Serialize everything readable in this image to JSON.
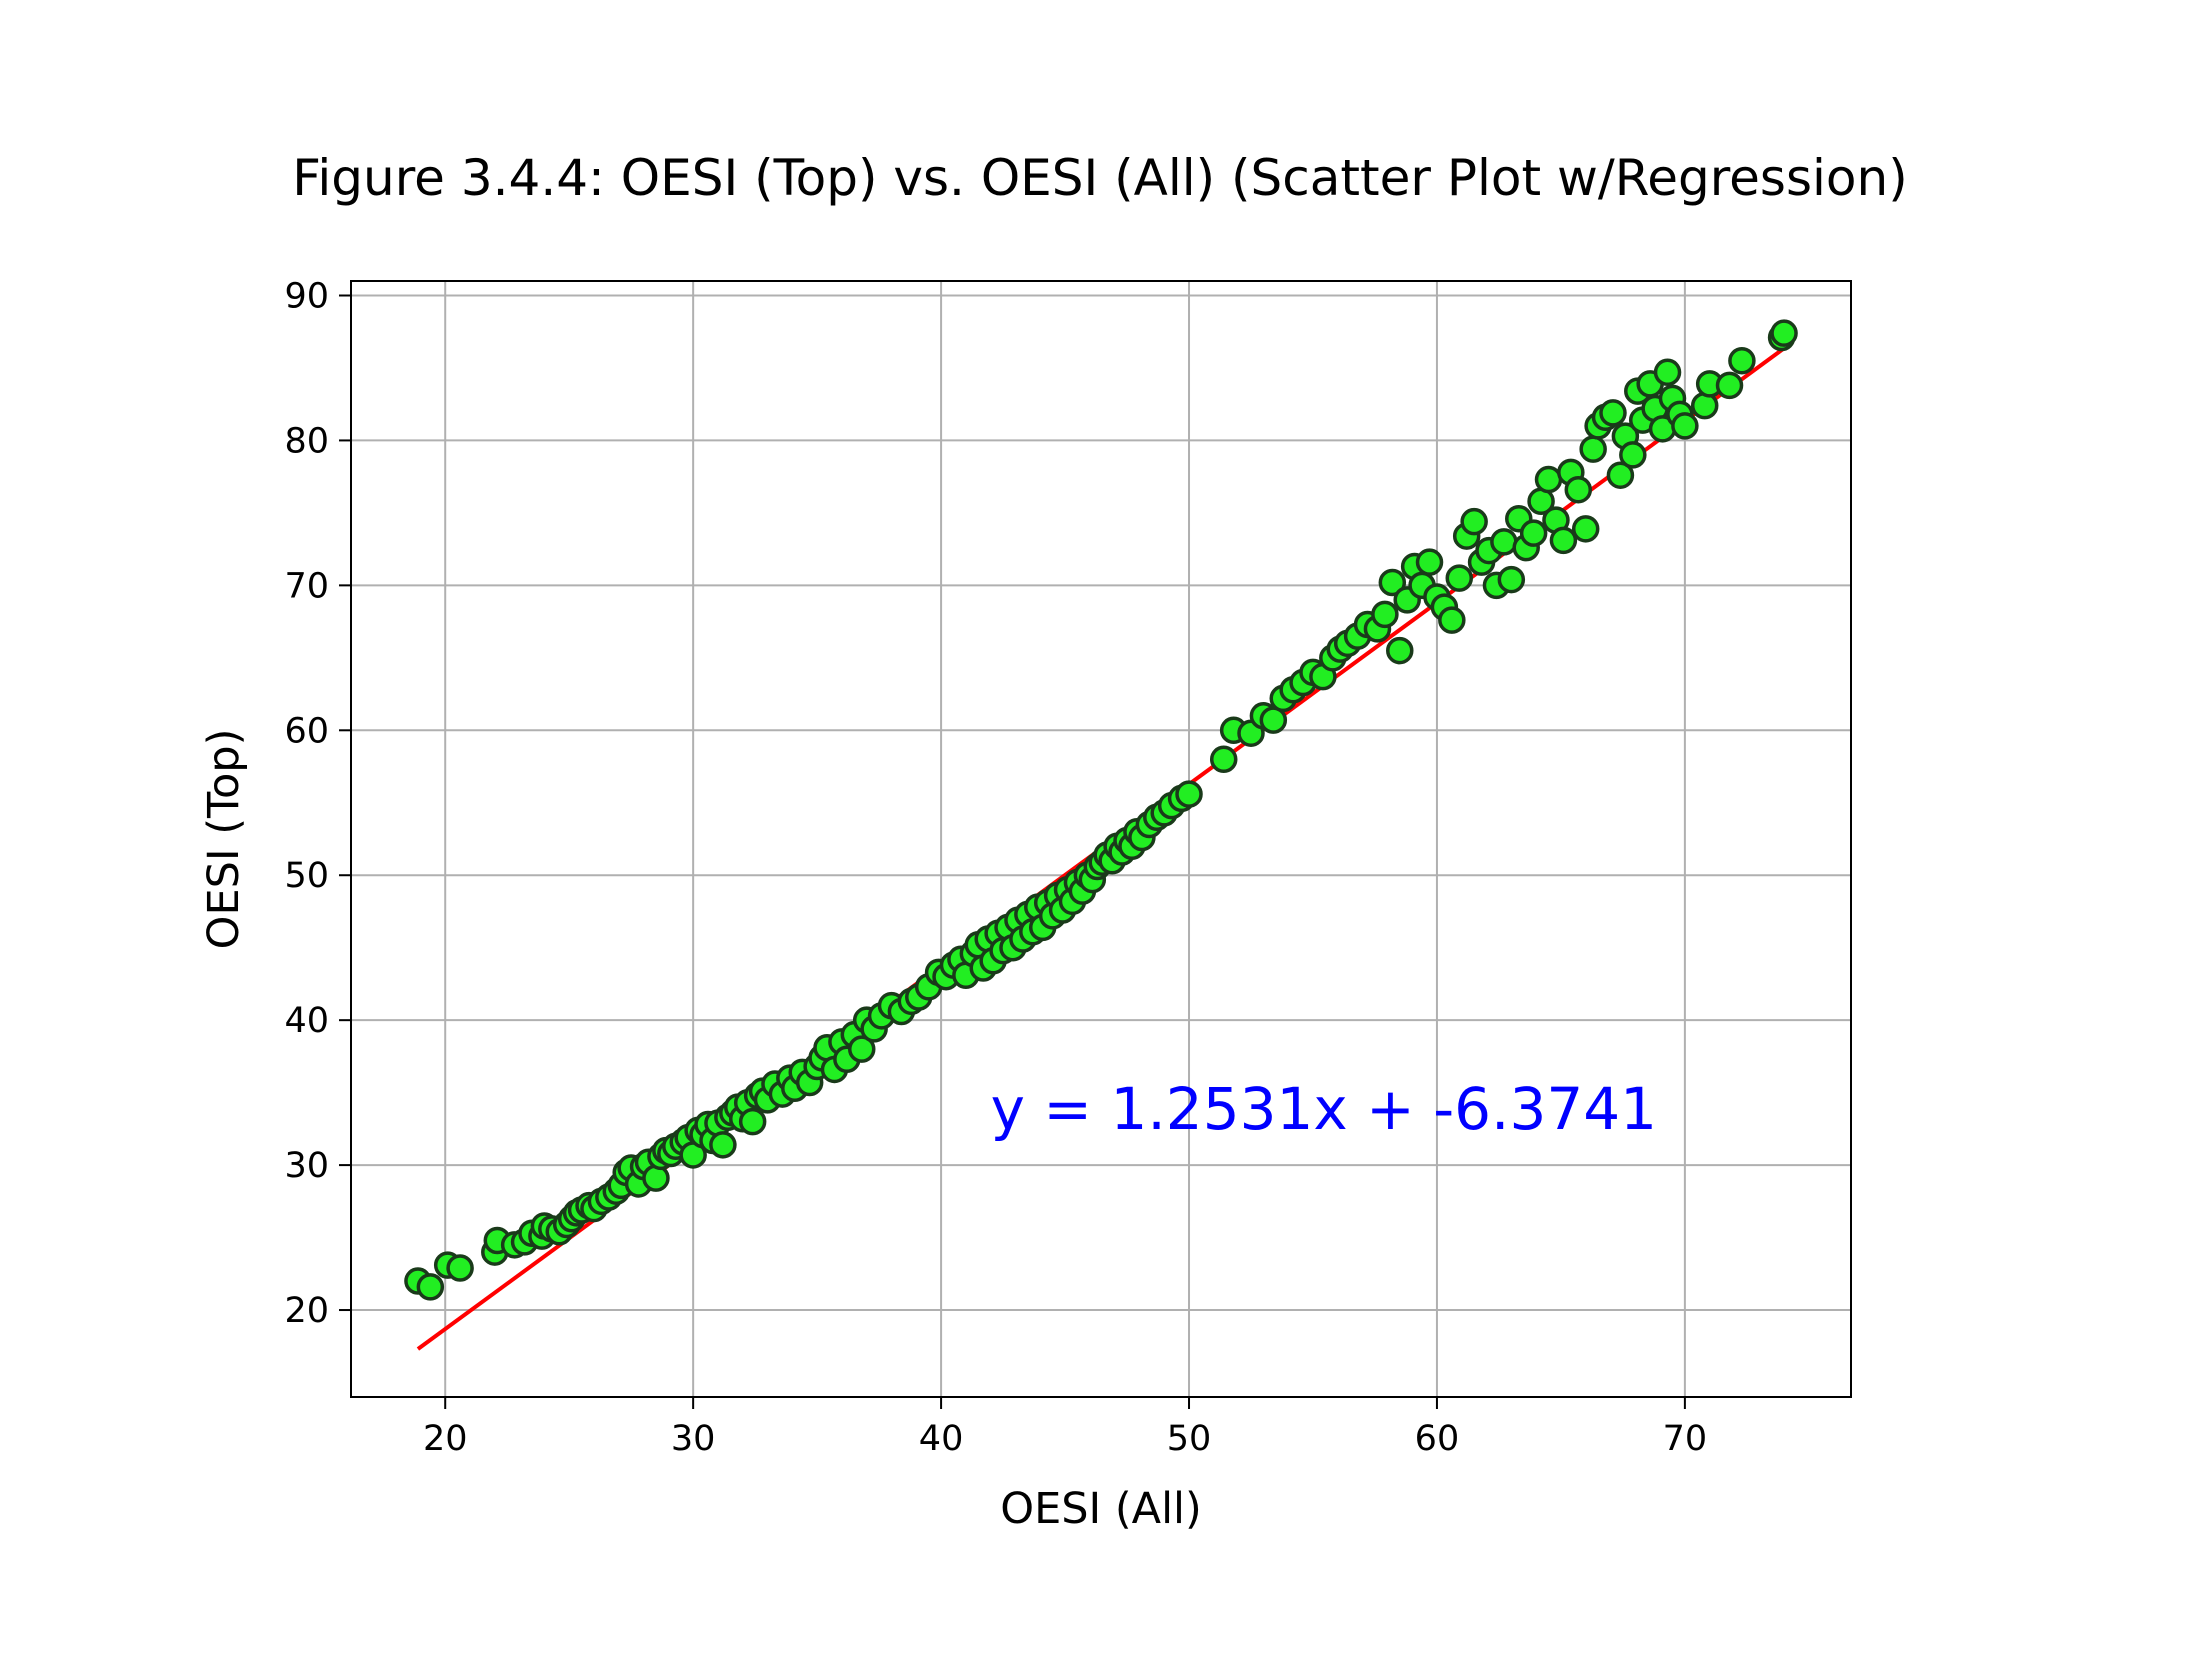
{
  "chart_data": {
    "type": "scatter",
    "title": "Figure 3.4.4: OESI (Top) vs. OESI (All) (Scatter Plot w/Regression)",
    "xlabel": "OESI (All)",
    "ylabel": "OESI (Top)",
    "xlim": [
      16.2,
      76.7
    ],
    "ylim": [
      14.0,
      91.0
    ],
    "xticks": [
      20,
      30,
      40,
      50,
      60,
      70
    ],
    "yticks": [
      20,
      30,
      40,
      50,
      60,
      70,
      80,
      90
    ],
    "xtick_labels": [
      "20",
      "30",
      "40",
      "50",
      "60",
      "70"
    ],
    "ytick_labels": [
      "20",
      "30",
      "40",
      "50",
      "60",
      "70",
      "80",
      "90"
    ],
    "grid": true,
    "regression": {
      "slope": 1.2531,
      "intercept": -6.3741,
      "x_range": [
        18.9,
        74.0
      ],
      "equation_label": "y = 1.2531x + -6.3741",
      "label_position": [
        42.0,
        32.5
      ],
      "color": "#ff0000"
    },
    "marker": {
      "fill": "#22ee22",
      "edge": "#1a3a1a"
    },
    "annotation_color": "#0000ff",
    "points": [
      [
        18.9,
        22.0
      ],
      [
        19.4,
        21.6
      ],
      [
        20.1,
        23.1
      ],
      [
        20.6,
        22.9
      ],
      [
        22.0,
        24.0
      ],
      [
        22.1,
        24.8
      ],
      [
        22.8,
        24.5
      ],
      [
        23.2,
        24.7
      ],
      [
        23.5,
        25.3
      ],
      [
        23.9,
        25.1
      ],
      [
        24.0,
        25.8
      ],
      [
        24.3,
        25.6
      ],
      [
        24.6,
        25.4
      ],
      [
        24.9,
        25.9
      ],
      [
        25.1,
        26.3
      ],
      [
        25.3,
        26.7
      ],
      [
        25.5,
        26.9
      ],
      [
        25.8,
        27.2
      ],
      [
        26.0,
        27.0
      ],
      [
        26.3,
        27.5
      ],
      [
        26.6,
        27.8
      ],
      [
        26.9,
        28.2
      ],
      [
        27.1,
        28.6
      ],
      [
        27.3,
        29.5
      ],
      [
        27.5,
        29.8
      ],
      [
        27.8,
        28.7
      ],
      [
        28.0,
        29.9
      ],
      [
        28.2,
        30.2
      ],
      [
        28.5,
        29.1
      ],
      [
        28.7,
        30.6
      ],
      [
        28.9,
        31.0
      ],
      [
        29.1,
        30.8
      ],
      [
        29.3,
        31.3
      ],
      [
        29.6,
        31.6
      ],
      [
        29.8,
        31.9
      ],
      [
        30.0,
        30.7
      ],
      [
        30.2,
        32.4
      ],
      [
        30.4,
        32.1
      ],
      [
        30.6,
        32.8
      ],
      [
        30.8,
        31.7
      ],
      [
        31.0,
        32.9
      ],
      [
        31.2,
        31.4
      ],
      [
        31.4,
        33.3
      ],
      [
        31.6,
        33.6
      ],
      [
        31.8,
        34.0
      ],
      [
        32.0,
        33.2
      ],
      [
        32.2,
        34.3
      ],
      [
        32.4,
        33.0
      ],
      [
        32.6,
        34.8
      ],
      [
        32.8,
        35.1
      ],
      [
        33.0,
        34.5
      ],
      [
        33.3,
        35.6
      ],
      [
        33.6,
        34.9
      ],
      [
        33.9,
        36.0
      ],
      [
        34.1,
        35.3
      ],
      [
        34.4,
        36.4
      ],
      [
        34.7,
        35.7
      ],
      [
        35.0,
        36.8
      ],
      [
        35.2,
        37.4
      ],
      [
        35.4,
        38.1
      ],
      [
        35.7,
        36.6
      ],
      [
        36.0,
        38.5
      ],
      [
        36.2,
        37.3
      ],
      [
        36.5,
        39.0
      ],
      [
        36.8,
        38.0
      ],
      [
        37.0,
        40.0
      ],
      [
        37.3,
        39.4
      ],
      [
        37.6,
        40.3
      ],
      [
        38.0,
        41.0
      ],
      [
        38.4,
        40.6
      ],
      [
        38.8,
        41.3
      ],
      [
        39.1,
        41.6
      ],
      [
        39.5,
        42.3
      ],
      [
        39.9,
        43.3
      ],
      [
        40.2,
        43.0
      ],
      [
        40.5,
        43.8
      ],
      [
        40.8,
        44.2
      ],
      [
        41.0,
        43.1
      ],
      [
        41.3,
        44.6
      ],
      [
        41.5,
        45.2
      ],
      [
        41.7,
        43.6
      ],
      [
        41.9,
        45.6
      ],
      [
        42.1,
        44.1
      ],
      [
        42.3,
        46.0
      ],
      [
        42.5,
        44.8
      ],
      [
        42.7,
        46.4
      ],
      [
        42.9,
        45.0
      ],
      [
        43.1,
        46.9
      ],
      [
        43.3,
        45.6
      ],
      [
        43.5,
        47.3
      ],
      [
        43.7,
        46.1
      ],
      [
        43.9,
        47.8
      ],
      [
        44.1,
        46.4
      ],
      [
        44.3,
        48.1
      ],
      [
        44.5,
        47.2
      ],
      [
        44.7,
        48.6
      ],
      [
        44.9,
        47.6
      ],
      [
        45.1,
        49.0
      ],
      [
        45.3,
        48.2
      ],
      [
        45.5,
        49.5
      ],
      [
        45.7,
        48.9
      ],
      [
        45.9,
        50.0
      ],
      [
        46.1,
        49.7
      ],
      [
        46.3,
        50.6
      ],
      [
        46.5,
        50.9
      ],
      [
        46.7,
        51.4
      ],
      [
        46.9,
        51.0
      ],
      [
        47.1,
        52.0
      ],
      [
        47.3,
        51.6
      ],
      [
        47.5,
        52.4
      ],
      [
        47.7,
        52.0
      ],
      [
        47.9,
        53.0
      ],
      [
        48.1,
        52.6
      ],
      [
        48.4,
        53.5
      ],
      [
        48.7,
        54.0
      ],
      [
        49.0,
        54.3
      ],
      [
        49.3,
        54.8
      ],
      [
        49.7,
        55.3
      ],
      [
        50.0,
        55.6
      ],
      [
        51.4,
        58.0
      ],
      [
        51.8,
        60.0
      ],
      [
        52.5,
        59.8
      ],
      [
        53.0,
        61.0
      ],
      [
        53.4,
        60.7
      ],
      [
        53.8,
        62.2
      ],
      [
        54.2,
        62.8
      ],
      [
        54.6,
        63.3
      ],
      [
        55.0,
        64.0
      ],
      [
        55.4,
        63.7
      ],
      [
        55.8,
        65.0
      ],
      [
        56.1,
        65.6
      ],
      [
        56.4,
        66.0
      ],
      [
        56.8,
        66.5
      ],
      [
        57.2,
        67.3
      ],
      [
        57.6,
        67.0
      ],
      [
        57.9,
        68.0
      ],
      [
        58.2,
        70.2
      ],
      [
        58.5,
        65.5
      ],
      [
        58.8,
        69.0
      ],
      [
        59.1,
        71.3
      ],
      [
        59.4,
        70.0
      ],
      [
        59.7,
        71.6
      ],
      [
        60.0,
        69.2
      ],
      [
        60.3,
        68.5
      ],
      [
        60.6,
        67.6
      ],
      [
        60.9,
        70.5
      ],
      [
        61.2,
        73.4
      ],
      [
        61.5,
        74.4
      ],
      [
        61.8,
        71.6
      ],
      [
        62.1,
        72.4
      ],
      [
        62.4,
        70.0
      ],
      [
        62.7,
        73.0
      ],
      [
        63.0,
        70.4
      ],
      [
        63.3,
        74.6
      ],
      [
        63.6,
        72.6
      ],
      [
        63.9,
        73.6
      ],
      [
        64.2,
        75.8
      ],
      [
        64.5,
        77.3
      ],
      [
        64.8,
        74.5
      ],
      [
        65.1,
        73.1
      ],
      [
        65.4,
        77.8
      ],
      [
        65.7,
        76.6
      ],
      [
        66.0,
        73.9
      ],
      [
        66.3,
        79.4
      ],
      [
        66.5,
        81.0
      ],
      [
        66.8,
        81.6
      ],
      [
        67.1,
        81.9
      ],
      [
        67.4,
        77.6
      ],
      [
        67.6,
        80.3
      ],
      [
        67.9,
        79.0
      ],
      [
        68.1,
        83.4
      ],
      [
        68.3,
        81.4
      ],
      [
        68.6,
        83.9
      ],
      [
        68.8,
        82.2
      ],
      [
        69.1,
        80.8
      ],
      [
        69.3,
        84.7
      ],
      [
        69.5,
        82.9
      ],
      [
        69.8,
        81.8
      ],
      [
        70.0,
        81.0
      ],
      [
        70.8,
        82.4
      ],
      [
        71.0,
        83.9
      ],
      [
        71.8,
        83.8
      ],
      [
        72.3,
        85.5
      ],
      [
        73.9,
        87.1
      ],
      [
        74.0,
        87.4
      ]
    ]
  }
}
